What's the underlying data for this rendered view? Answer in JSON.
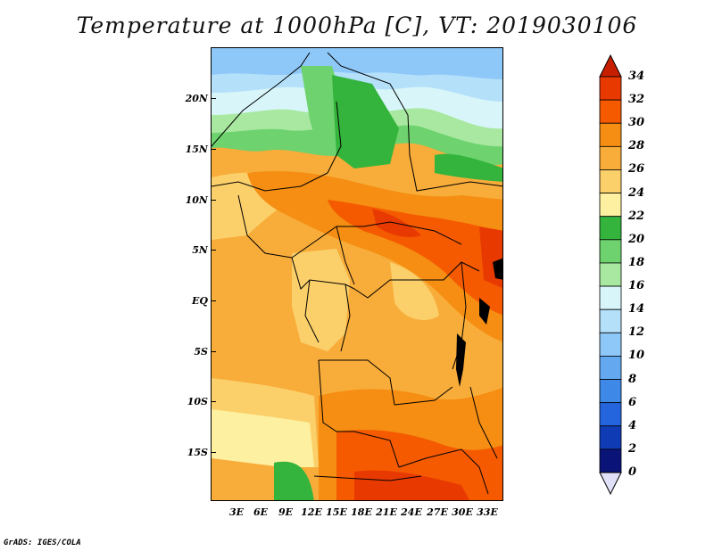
{
  "title": "Temperature at 1000hPa [C], VT: 2019030106",
  "credit": "GrADS: IGES/COLA",
  "lat_labels": [
    "20N",
    "15N",
    "10N",
    "5N",
    "EQ",
    "5S",
    "10S",
    "15S"
  ],
  "lon_labels": [
    "3E",
    "6E",
    "9E",
    "12E",
    "15E",
    "18E",
    "21E",
    "24E",
    "27E",
    "30E",
    "33E"
  ],
  "colorbar": {
    "labels": [
      "34",
      "32",
      "30",
      "28",
      "26",
      "24",
      "22",
      "20",
      "18",
      "16",
      "14",
      "12",
      "10",
      "8",
      "6",
      "4",
      "2",
      "0"
    ],
    "colors": [
      "#c81e00",
      "#e83a00",
      "#f55a00",
      "#f58e12",
      "#f8ac3a",
      "#fbd06a",
      "#fdf0a0",
      "#34b43c",
      "#6ed26e",
      "#a8e8a0",
      "#d8f6fa",
      "#b4e0fa",
      "#8ec8f8",
      "#64a8f0",
      "#3e88e8",
      "#2464dc",
      "#0f3cb4",
      "#0a1478"
    ],
    "bottom_triangle_color": "#e0e0f8"
  },
  "regions": {
    "sahara_north": "cool",
    "sahel": "mild",
    "congo_basin": "warm",
    "east_africa": "hot",
    "southern_africa": "hot"
  }
}
